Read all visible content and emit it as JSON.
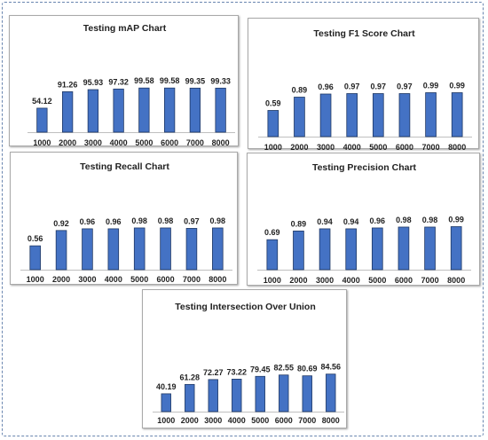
{
  "colors": {
    "bar": "#4472c4",
    "bar_edge": "#1f3864",
    "frame": "#6a86b0"
  },
  "chart_data": [
    {
      "type": "bar",
      "title": "Testing mAP Chart",
      "categories": [
        "1000",
        "2000",
        "3000",
        "4000",
        "5000",
        "6000",
        "7000",
        "8000"
      ],
      "values": [
        54.12,
        91.26,
        95.93,
        97.32,
        99.58,
        99.58,
        99.35,
        99.33
      ],
      "labels": [
        "54.12",
        "91.26",
        "95.93",
        "97.32",
        "99.58",
        "99.58",
        "99.35",
        "99.33"
      ],
      "ylim": [
        0,
        100
      ]
    },
    {
      "type": "bar",
      "title": "Testing F1 Score Chart",
      "categories": [
        "1000",
        "2000",
        "3000",
        "4000",
        "5000",
        "6000",
        "7000",
        "8000"
      ],
      "values": [
        0.59,
        0.89,
        0.96,
        0.97,
        0.97,
        0.97,
        0.99,
        0.99
      ],
      "labels": [
        "0.59",
        "0.89",
        "0.96",
        "0.97",
        "0.97",
        "0.97",
        "0.99",
        "0.99"
      ],
      "ylim": [
        0,
        1
      ]
    },
    {
      "type": "bar",
      "title": "Testing Recall  Chart",
      "categories": [
        "1000",
        "2000",
        "3000",
        "4000",
        "5000",
        "6000",
        "7000",
        "8000"
      ],
      "values": [
        0.56,
        0.92,
        0.96,
        0.96,
        0.98,
        0.98,
        0.97,
        0.98
      ],
      "labels": [
        "0.56",
        "0.92",
        "0.96",
        "0.96",
        "0.98",
        "0.98",
        "0.97",
        "0.98"
      ],
      "ylim": [
        0,
        1
      ]
    },
    {
      "type": "bar",
      "title": "Testing Precision Chart",
      "categories": [
        "1000",
        "2000",
        "3000",
        "4000",
        "5000",
        "6000",
        "7000",
        "8000"
      ],
      "values": [
        0.69,
        0.89,
        0.94,
        0.94,
        0.96,
        0.98,
        0.98,
        0.99
      ],
      "labels": [
        "0.69",
        "0.89",
        "0.94",
        "0.94",
        "0.96",
        "0.98",
        "0.98",
        "0.99"
      ],
      "ylim": [
        0,
        1
      ]
    },
    {
      "type": "bar",
      "title": "Testing Intersection Over Union",
      "categories": [
        "1000",
        "2000",
        "3000",
        "4000",
        "5000",
        "6000",
        "7000",
        "8000"
      ],
      "values": [
        40.19,
        61.28,
        72.27,
        73.22,
        79.45,
        82.55,
        80.69,
        84.56
      ],
      "labels": [
        "40.19",
        "61.28",
        "72.27",
        "73.22",
        "79.45",
        "82.55",
        "80.69",
        "84.56"
      ],
      "ylim": [
        0,
        100
      ]
    }
  ]
}
